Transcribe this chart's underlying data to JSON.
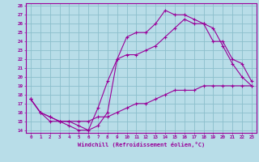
{
  "title": "",
  "xlabel": "Windchill (Refroidissement éolien,°C)",
  "bg_color": "#b8dde8",
  "grid_color": "#8bbfcc",
  "line_color": "#990099",
  "xlim": [
    -0.5,
    23.5
  ],
  "ylim": [
    13.7,
    28.3
  ],
  "xticks": [
    0,
    1,
    2,
    3,
    4,
    5,
    6,
    7,
    8,
    9,
    10,
    11,
    12,
    13,
    14,
    15,
    16,
    17,
    18,
    19,
    20,
    21,
    22,
    23
  ],
  "yticks": [
    14,
    15,
    16,
    17,
    18,
    19,
    20,
    21,
    22,
    23,
    24,
    25,
    26,
    27,
    28
  ],
  "curve1_x": [
    0,
    1,
    2,
    3,
    4,
    5,
    6,
    7,
    8,
    9,
    10,
    11,
    12,
    13,
    14,
    15,
    16,
    17,
    18,
    19,
    20,
    21,
    22,
    23
  ],
  "curve1_y": [
    17.5,
    16.0,
    15.0,
    15.0,
    14.5,
    14.0,
    14.0,
    14.5,
    16.0,
    22.0,
    24.5,
    25.0,
    25.0,
    26.0,
    27.5,
    27.0,
    27.0,
    26.5,
    26.0,
    25.5,
    23.5,
    21.5,
    20.0,
    19.0
  ],
  "curve2_x": [
    0,
    1,
    2,
    3,
    4,
    5,
    6,
    7,
    8,
    9,
    10,
    11,
    12,
    13,
    14,
    15,
    16,
    17,
    18,
    19,
    20,
    21,
    22,
    23
  ],
  "curve2_y": [
    17.5,
    16.0,
    15.5,
    15.0,
    15.0,
    14.5,
    14.0,
    16.5,
    19.5,
    22.0,
    22.5,
    22.5,
    23.0,
    23.5,
    24.5,
    25.5,
    26.5,
    26.0,
    26.0,
    24.0,
    24.0,
    22.0,
    21.5,
    19.5
  ],
  "curve3_x": [
    0,
    1,
    2,
    3,
    4,
    5,
    6,
    7,
    8,
    9,
    10,
    11,
    12,
    13,
    14,
    15,
    16,
    17,
    18,
    19,
    20,
    21,
    22,
    23
  ],
  "curve3_y": [
    17.5,
    16.0,
    15.5,
    15.0,
    15.0,
    15.0,
    15.0,
    15.5,
    15.5,
    16.0,
    16.5,
    17.0,
    17.0,
    17.5,
    18.0,
    18.5,
    18.5,
    18.5,
    19.0,
    19.0,
    19.0,
    19.0,
    19.0,
    19.0
  ]
}
